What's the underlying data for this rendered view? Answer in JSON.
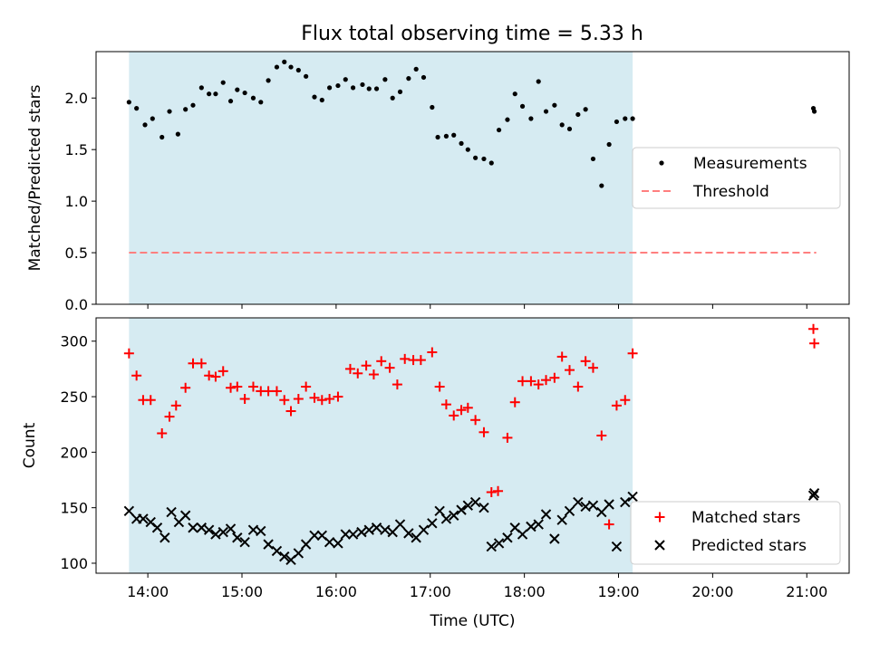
{
  "title": "Flux total observing time = 5.33 h",
  "colors": {
    "band": "#add8e6",
    "measurement": "#000000",
    "threshold": "#ff7f7f",
    "matched": "#ff0000",
    "predicted": "#000000"
  },
  "chart_data": [
    {
      "type": "scatter",
      "panel": "top",
      "ylabel": "Matched/Predicted stars",
      "xlim": [
        13.45,
        21.45
      ],
      "ylim": [
        0,
        2.45
      ],
      "yticks": [
        0.0,
        0.5,
        1.0,
        1.5,
        2.0
      ],
      "ytick_labels": [
        "0.0",
        "0.5",
        "1.0",
        "1.5",
        "2.0"
      ],
      "shaded_span": [
        13.8,
        19.15
      ],
      "threshold": {
        "value": 0.5,
        "x_range": [
          13.8,
          21.1
        ]
      },
      "legend": {
        "position": "center-right",
        "entries": [
          "Measurements",
          "Threshold"
        ]
      },
      "series": [
        {
          "name": "Measurements",
          "x": [
            13.8,
            13.88,
            13.97,
            14.05,
            14.15,
            14.23,
            14.32,
            14.4,
            14.48,
            14.57,
            14.65,
            14.72,
            14.8,
            14.88,
            14.95,
            15.03,
            15.12,
            15.2,
            15.28,
            15.37,
            15.45,
            15.52,
            15.6,
            15.68,
            15.77,
            15.85,
            15.93,
            16.02,
            16.1,
            16.18,
            16.28,
            16.35,
            16.43,
            16.52,
            16.6,
            16.68,
            16.77,
            16.85,
            16.93,
            17.02,
            17.08,
            17.17,
            17.25,
            17.33,
            17.4,
            17.48,
            17.57,
            17.65,
            17.73,
            17.82,
            17.9,
            17.98,
            18.07,
            18.15,
            18.23,
            18.32,
            18.4,
            18.48,
            18.57,
            18.65,
            18.73,
            18.82,
            18.9,
            18.98,
            19.07,
            19.15,
            21.07,
            21.08
          ],
          "values": [
            1.96,
            1.9,
            1.74,
            1.8,
            1.62,
            1.87,
            1.65,
            1.89,
            1.93,
            2.1,
            2.04,
            2.04,
            2.15,
            1.97,
            2.08,
            2.05,
            2.0,
            1.96,
            2.17,
            2.3,
            2.35,
            2.3,
            2.27,
            2.21,
            2.01,
            1.98,
            2.1,
            2.12,
            2.18,
            2.1,
            2.13,
            2.09,
            2.09,
            2.18,
            2.0,
            2.06,
            2.19,
            2.28,
            2.2,
            1.91,
            1.62,
            1.63,
            1.64,
            1.56,
            1.5,
            1.42,
            1.41,
            1.37,
            1.69,
            1.79,
            2.04,
            1.92,
            1.8,
            2.16,
            1.87,
            1.93,
            1.74,
            1.7,
            1.84,
            1.89,
            1.41,
            1.15,
            1.55,
            1.77,
            1.8,
            1.8,
            1.9,
            1.87
          ]
        }
      ]
    },
    {
      "type": "scatter",
      "panel": "bottom",
      "title": "",
      "xlabel": "Time (UTC)",
      "ylabel": "Count",
      "xlim": [
        13.45,
        21.45
      ],
      "ylim": [
        91,
        321
      ],
      "xticks": [
        14,
        15,
        16,
        17,
        18,
        19,
        20,
        21
      ],
      "xtick_labels": [
        "14:00",
        "15:00",
        "16:00",
        "17:00",
        "18:00",
        "19:00",
        "20:00",
        "21:00"
      ],
      "yticks": [
        100,
        150,
        200,
        250,
        300
      ],
      "ytick_labels": [
        "100",
        "150",
        "200",
        "250",
        "300"
      ],
      "shaded_span": [
        13.8,
        19.15
      ],
      "legend": {
        "position": "lower-right",
        "entries": [
          "Matched stars",
          "Predicted stars"
        ]
      },
      "series": [
        {
          "name": "Matched stars",
          "marker": "+",
          "x": [
            13.8,
            13.88,
            13.95,
            14.03,
            14.15,
            14.23,
            14.3,
            14.4,
            14.48,
            14.57,
            14.65,
            14.72,
            14.8,
            14.88,
            14.95,
            15.03,
            15.12,
            15.2,
            15.28,
            15.37,
            15.45,
            15.52,
            15.6,
            15.68,
            15.77,
            15.85,
            15.93,
            16.02,
            16.15,
            16.23,
            16.32,
            16.4,
            16.48,
            16.57,
            16.65,
            16.73,
            16.82,
            16.9,
            17.02,
            17.1,
            17.17,
            17.25,
            17.33,
            17.4,
            17.48,
            17.57,
            17.65,
            17.72,
            17.82,
            17.9,
            17.98,
            18.07,
            18.15,
            18.23,
            18.32,
            18.4,
            18.48,
            18.57,
            18.65,
            18.73,
            18.82,
            18.9,
            18.98,
            19.07,
            19.15,
            21.07,
            21.08
          ],
          "values": [
            289,
            269,
            247,
            247,
            217,
            232,
            242,
            258,
            280,
            280,
            269,
            268,
            273,
            258,
            259,
            248,
            259,
            255,
            255,
            255,
            247,
            237,
            248,
            259,
            249,
            247,
            248,
            250,
            275,
            271,
            278,
            270,
            282,
            276,
            261,
            284,
            283,
            283,
            290,
            259,
            243,
            233,
            238,
            240,
            229,
            218,
            164,
            165,
            213,
            245,
            264,
            264,
            261,
            265,
            267,
            286,
            274,
            259,
            282,
            276,
            215,
            135,
            242,
            247,
            289,
            311,
            298
          ]
        },
        {
          "name": "Predicted stars",
          "marker": "x",
          "x": [
            13.8,
            13.88,
            13.95,
            14.03,
            14.1,
            14.18,
            14.25,
            14.33,
            14.4,
            14.48,
            14.57,
            14.65,
            14.72,
            14.8,
            14.88,
            14.95,
            15.03,
            15.12,
            15.2,
            15.28,
            15.37,
            15.45,
            15.52,
            15.6,
            15.68,
            15.77,
            15.85,
            15.93,
            16.02,
            16.1,
            16.18,
            16.27,
            16.35,
            16.43,
            16.52,
            16.6,
            16.68,
            16.77,
            16.85,
            16.93,
            17.02,
            17.1,
            17.17,
            17.25,
            17.33,
            17.4,
            17.48,
            17.57,
            17.65,
            17.73,
            17.82,
            17.9,
            17.98,
            18.07,
            18.15,
            18.23,
            18.32,
            18.4,
            18.48,
            18.57,
            18.65,
            18.73,
            18.82,
            18.9,
            18.98,
            19.07,
            19.15,
            21.07,
            21.08
          ],
          "values": [
            147,
            140,
            140,
            137,
            132,
            123,
            146,
            137,
            143,
            132,
            132,
            130,
            126,
            128,
            131,
            123,
            119,
            130,
            129,
            117,
            111,
            106,
            103,
            109,
            117,
            125,
            125,
            119,
            118,
            126,
            126,
            128,
            130,
            132,
            130,
            128,
            135,
            127,
            123,
            130,
            136,
            147,
            140,
            143,
            148,
            152,
            155,
            150,
            115,
            118,
            123,
            132,
            126,
            133,
            135,
            144,
            122,
            139,
            147,
            155,
            151,
            152,
            146,
            153,
            115,
            155,
            160,
            161,
            163
          ]
        }
      ]
    }
  ]
}
